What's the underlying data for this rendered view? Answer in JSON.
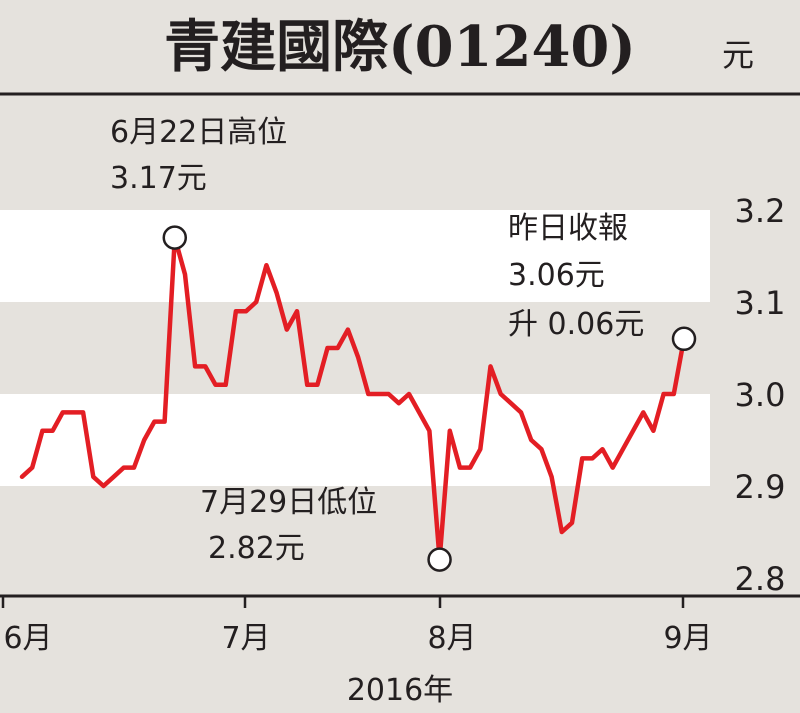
{
  "colors": {
    "background": "#e5e2dd",
    "band_white": "#ffffff",
    "line": "#e31e24",
    "ink": "#231f20"
  },
  "chart_data": {
    "type": "line",
    "title": "青建國際(01240)",
    "unit": "元",
    "xlabel": "2016年",
    "x_ticks": [
      "6月",
      "7月",
      "8月",
      "9月"
    ],
    "y_ticks": [
      "3.2",
      "3.1",
      "3.0",
      "2.9",
      "2.8"
    ],
    "ylim": [
      2.8,
      3.2
    ],
    "grid": "alternating horizontal bands",
    "annotations": {
      "high": {
        "date": "6月22日",
        "label": "6月22日高位",
        "value_text": "3.17元",
        "value": 3.17
      },
      "low": {
        "date": "7月29日",
        "label": "7月29日低位",
        "value_text": "2.82元",
        "value": 2.82
      },
      "close": {
        "label": "昨日收報",
        "value_text": "3.06元",
        "change_text": "升 0.06元",
        "value": 3.06
      }
    },
    "series": [
      {
        "values": [
          2.91,
          2.92,
          2.96,
          2.96,
          2.98,
          2.98,
          2.98,
          2.91,
          2.9,
          2.91,
          2.92,
          2.92,
          2.95,
          2.97,
          2.97,
          3.17,
          3.13,
          3.03,
          3.03,
          3.01,
          3.01,
          3.09,
          3.09,
          3.1,
          3.14,
          3.11,
          3.07,
          3.09,
          3.01,
          3.01,
          3.05,
          3.05,
          3.07,
          3.04,
          3.0,
          3.0,
          3.0,
          2.99,
          3.0,
          2.98,
          2.96,
          2.82,
          2.96,
          2.92,
          2.92,
          2.94,
          3.03,
          3.0,
          2.99,
          2.98,
          2.95,
          2.94,
          2.91,
          2.85,
          2.86,
          2.93,
          2.93,
          2.94,
          2.92,
          2.94,
          2.96,
          2.98,
          2.96,
          3.0,
          3.0,
          3.06
        ]
      }
    ]
  }
}
